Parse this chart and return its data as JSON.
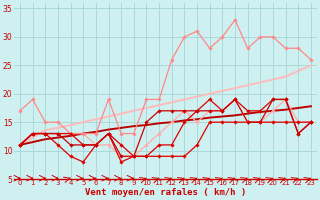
{
  "x": [
    0,
    1,
    2,
    3,
    4,
    5,
    6,
    7,
    8,
    9,
    10,
    11,
    12,
    13,
    14,
    15,
    16,
    17,
    18,
    19,
    20,
    21,
    22,
    23
  ],
  "background_color": "#cff0f0",
  "grid_color": "#aad8d8",
  "xlabel": "Vent moyen/en rafales ( km/h )",
  "xlabel_color": "#cc0000",
  "tick_color": "#cc0000",
  "ylim": [
    5,
    36
  ],
  "yticks": [
    5,
    10,
    15,
    20,
    25,
    30,
    35
  ],
  "lines": [
    {
      "y": [
        11,
        13,
        13,
        13,
        13,
        11,
        11,
        13,
        11,
        9,
        9,
        11,
        11,
        15,
        17,
        19,
        17,
        19,
        17,
        17,
        19,
        19,
        13,
        15
      ],
      "color": "#dd0000",
      "lw": 0.9,
      "marker": "D",
      "ms": 1.8,
      "zorder": 6
    },
    {
      "y": [
        11,
        13,
        13,
        11,
        9,
        8,
        11,
        13,
        8,
        9,
        9,
        9,
        9,
        9,
        11,
        15,
        15,
        15,
        15,
        15,
        15,
        15,
        15,
        15
      ],
      "color": "#dd0000",
      "lw": 0.9,
      "marker": "D",
      "ms": 1.8,
      "zorder": 5
    },
    {
      "y": [
        11,
        13,
        13,
        13,
        11,
        11,
        11,
        13,
        9,
        9,
        15,
        17,
        17,
        17,
        17,
        17,
        17,
        19,
        15,
        15,
        19,
        19,
        13,
        15
      ],
      "color": "#cc0000",
      "lw": 0.9,
      "marker": "D",
      "ms": 1.8,
      "zorder": 7
    },
    {
      "y": [
        17,
        19,
        15,
        15,
        13,
        13,
        13,
        19,
        13,
        13,
        19,
        19,
        26,
        30,
        31,
        28,
        30,
        33,
        28,
        30,
        30,
        28,
        28,
        26
      ],
      "color": "#ff8888",
      "lw": 0.9,
      "marker": "D",
      "ms": 1.8,
      "zorder": 4
    },
    {
      "y": [
        11,
        13,
        13,
        13,
        13,
        13,
        11,
        11,
        9,
        9,
        11,
        13,
        15,
        17,
        15,
        17,
        17,
        19,
        15,
        15,
        17,
        19,
        15,
        15
      ],
      "color": "#ffaaaa",
      "lw": 0.9,
      "marker": "D",
      "ms": 1.8,
      "zorder": 3
    },
    {
      "y": [
        11.0,
        12.3,
        13.6,
        14.0,
        14.5,
        15.0,
        15.5,
        16.0,
        16.5,
        17.0,
        17.5,
        18.0,
        18.5,
        19.0,
        19.5,
        20.0,
        20.5,
        21.0,
        21.5,
        22.0,
        22.5,
        23.0,
        24.0,
        25.0
      ],
      "color": "#ffbbbb",
      "lw": 1.4,
      "marker": null,
      "ms": 0,
      "zorder": 2
    },
    {
      "y": [
        11.0,
        11.5,
        12.0,
        12.3,
        12.6,
        13.0,
        13.3,
        13.7,
        14.0,
        14.3,
        14.5,
        14.8,
        15.0,
        15.3,
        15.5,
        15.8,
        16.0,
        16.2,
        16.5,
        16.8,
        17.0,
        17.2,
        17.5,
        17.8
      ],
      "color": "#bb0000",
      "lw": 1.4,
      "marker": null,
      "ms": 0,
      "zorder": 2
    }
  ],
  "arrow_color": "#cc0000",
  "arrow_row1": [
    0,
    1,
    2,
    3,
    4,
    5,
    6,
    7,
    8,
    9
  ],
  "arrow_row2": [
    10,
    11,
    12,
    13,
    14,
    15,
    16,
    17,
    18,
    19,
    20,
    21,
    22,
    23
  ]
}
